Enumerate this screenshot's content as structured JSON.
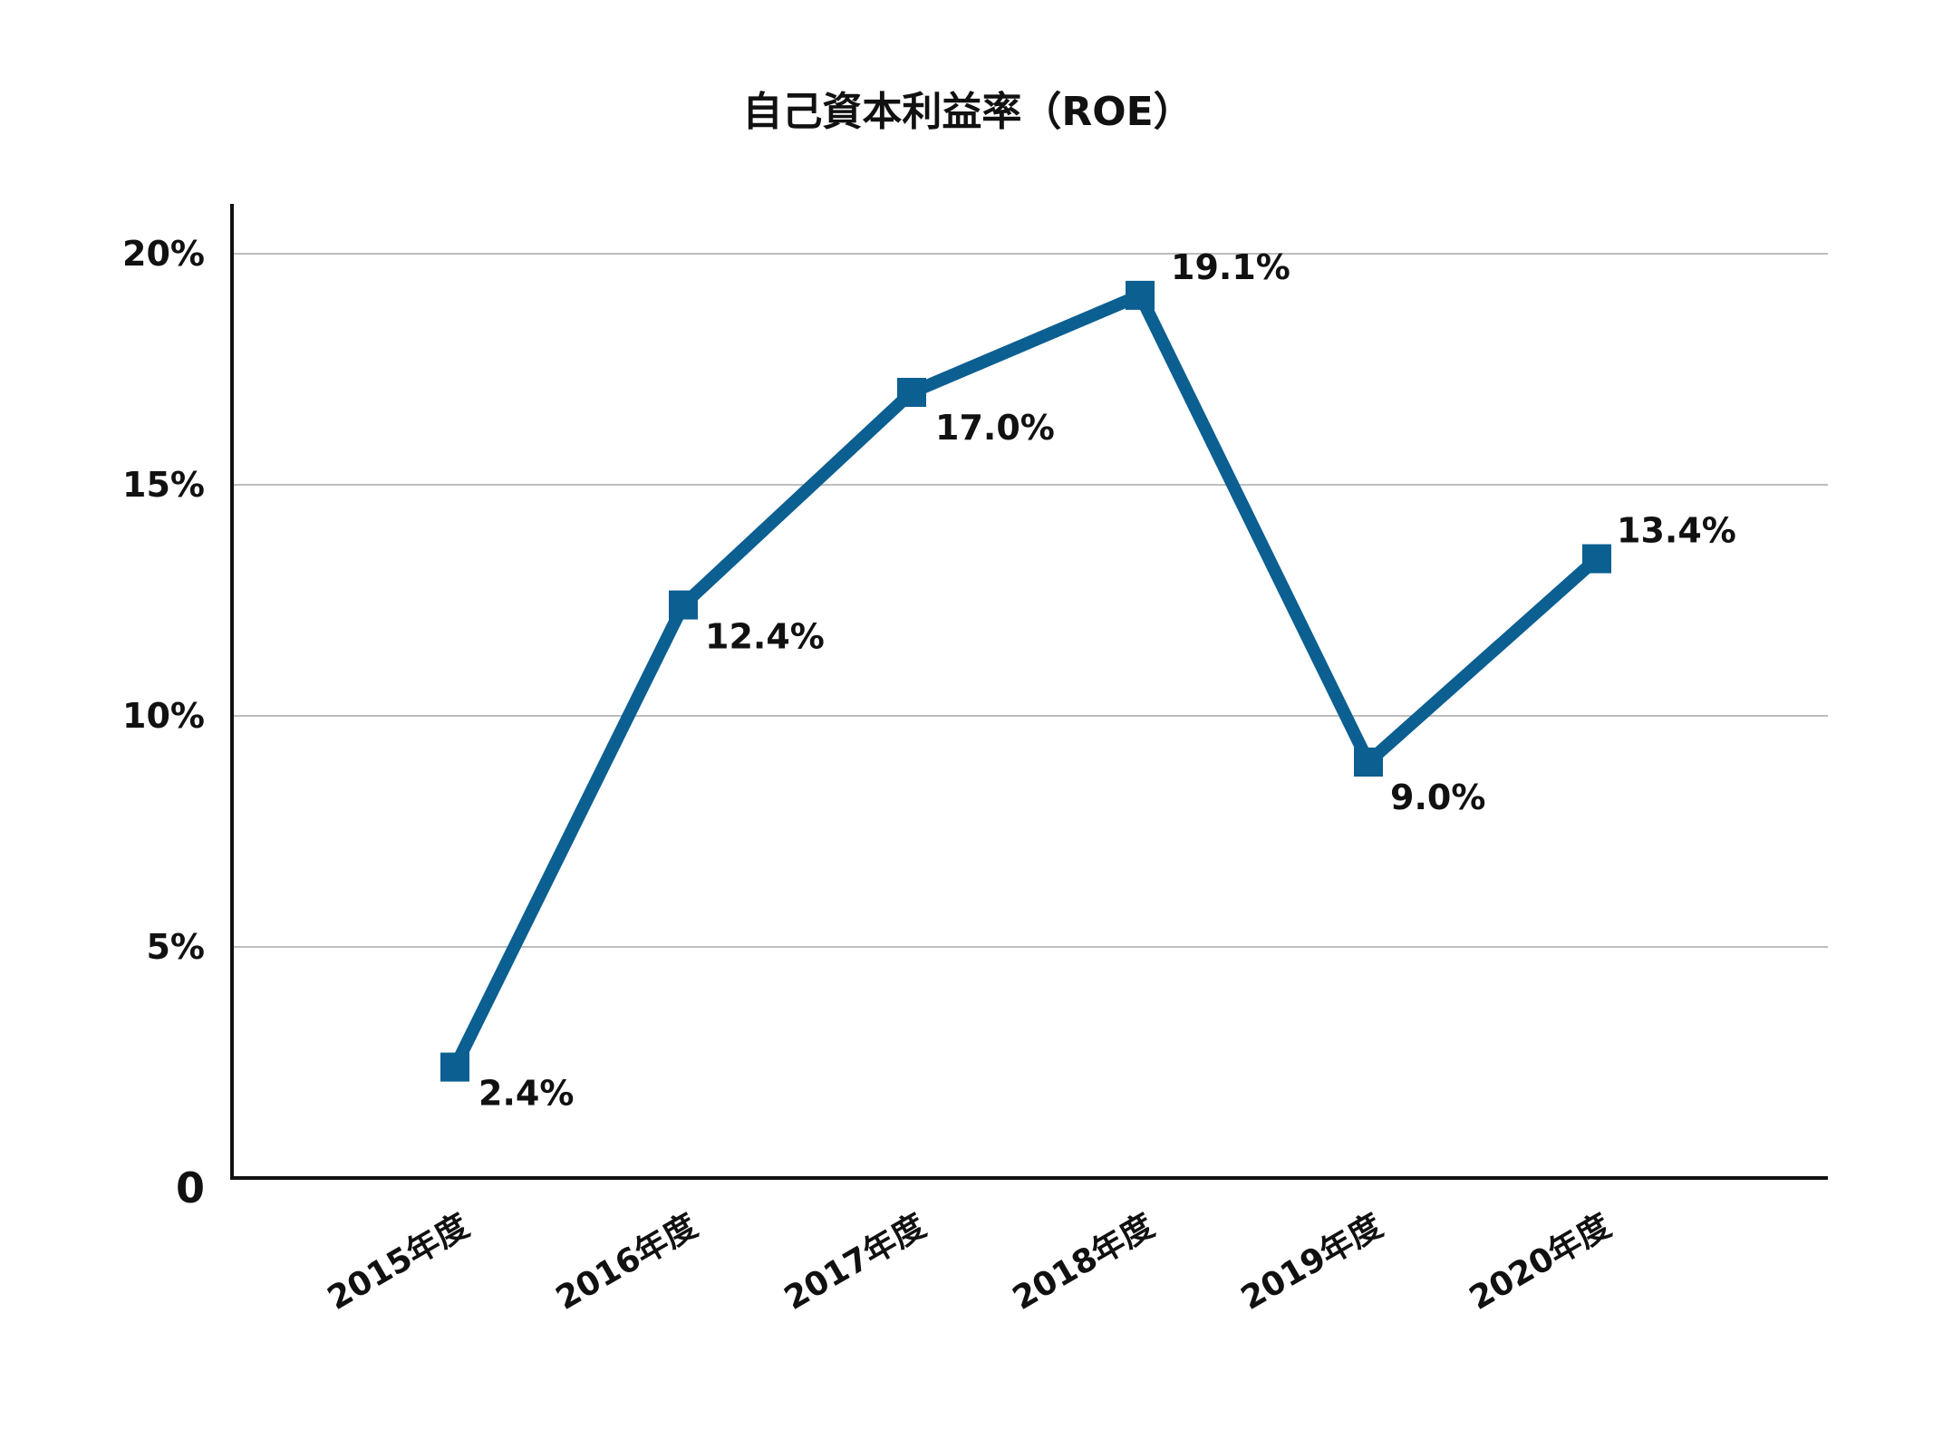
{
  "chart_data": {
    "type": "line",
    "title": "自己資本利益率（ROE）",
    "xlabel": "",
    "ylabel": "",
    "categories": [
      "2015年度",
      "2016年度",
      "2017年度",
      "2018年度",
      "2019年度",
      "2020年度"
    ],
    "series": [
      {
        "values": [
          2.4,
          12.4,
          17.0,
          19.1,
          9.0,
          13.4
        ],
        "labels": [
          "2.4%",
          "12.4%",
          "17.0%",
          "19.1%",
          "9.0%",
          "13.4%"
        ],
        "color": "#0b5f91"
      }
    ],
    "ylim": [
      0,
      21
    ],
    "yticks": [
      {
        "value": 0,
        "label": "0"
      },
      {
        "value": 5,
        "label": "5%"
      },
      {
        "value": 10,
        "label": "10%"
      },
      {
        "value": 15,
        "label": "15%"
      },
      {
        "value": 20,
        "label": "20%"
      }
    ],
    "grid": true,
    "legend": "none"
  }
}
